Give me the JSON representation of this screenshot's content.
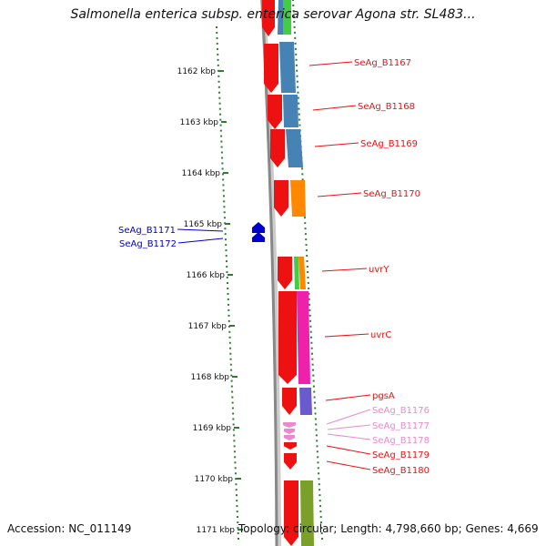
{
  "title": "Salmonella enterica subsp. enterica serovar Agona str. SL483...",
  "accession": "Accession: NC_011149",
  "summary": "Topology: circular; Length: 4,798,660 bp; Genes: 4,669",
  "colors": {
    "scale": "#2e7d32",
    "backbone": "#888888",
    "red_gene": "#ee1111",
    "blue_gene": "#0000cc",
    "pink_gene": "#ee88cc",
    "steel": "#4682b4",
    "orange": "#ff8800",
    "green": "#44cc44",
    "magenta": "#ee22aa",
    "purple": "#6a5acd",
    "olive": "#7aa02a"
  },
  "ruler": [
    {
      "label": "1162 kbp"
    },
    {
      "label": "1163 kbp"
    },
    {
      "label": "1164 kbp"
    },
    {
      "label": "1165 kbp"
    },
    {
      "label": "1166 kbp"
    },
    {
      "label": "1167 kbp"
    },
    {
      "label": "1168 kbp"
    },
    {
      "label": "1169 kbp"
    },
    {
      "label": "1170 kbp"
    },
    {
      "label": "1171 kbp"
    }
  ],
  "genes": [
    {
      "name": "SeAg_B1167",
      "strand": "minus",
      "color": "#ee1111"
    },
    {
      "name": "SeAg_B1168",
      "strand": "minus",
      "color": "#ee1111"
    },
    {
      "name": "SeAg_B1169",
      "strand": "minus",
      "color": "#ee1111"
    },
    {
      "name": "SeAg_B1170",
      "strand": "minus",
      "color": "#ee1111"
    },
    {
      "name": "SeAg_B1171",
      "strand": "plus",
      "color": "#0000cc"
    },
    {
      "name": "SeAg_B1172",
      "strand": "plus",
      "color": "#0000cc"
    },
    {
      "name": "uvrY",
      "strand": "minus",
      "color": "#ee1111"
    },
    {
      "name": "uvrC",
      "strand": "minus",
      "color": "#ee1111"
    },
    {
      "name": "pgsA",
      "strand": "minus",
      "color": "#ee1111"
    },
    {
      "name": "SeAg_B1176",
      "strand": "minus",
      "color": "#ee88cc"
    },
    {
      "name": "SeAg_B1177",
      "strand": "minus",
      "color": "#ee88cc"
    },
    {
      "name": "SeAg_B1178",
      "strand": "minus",
      "color": "#ee88cc"
    },
    {
      "name": "SeAg_B1179",
      "strand": "minus",
      "color": "#ee1111"
    },
    {
      "name": "SeAg_B1180",
      "strand": "minus",
      "color": "#ee1111"
    }
  ]
}
